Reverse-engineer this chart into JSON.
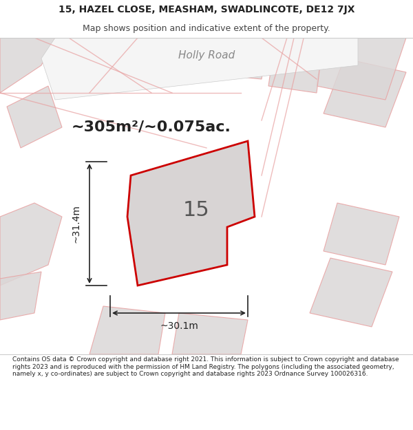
{
  "title_line1": "15, HAZEL CLOSE, MEASHAM, SWADLINCOTE, DE12 7JX",
  "title_line2": "Map shows position and indicative extent of the property.",
  "footer_text": "Contains OS data © Crown copyright and database right 2021. This information is subject to Crown copyright and database rights 2023 and is reproduced with the permission of HM Land Registry. The polygons (including the associated geometry, namely x, y co-ordinates) are subject to Crown copyright and database rights 2023 Ordnance Survey 100026316.",
  "area_label": "~305m²/~0.075ac.",
  "property_number": "15",
  "road_label": "Holly Road",
  "dim_width": "~30.1m",
  "dim_height": "~31.4m",
  "bg_color": "#f0eeee",
  "map_bg": "#e8e4e4",
  "plot_fill": "#d0cccc",
  "plot_outline": "#cc0000",
  "road_color": "#ffffff",
  "text_color": "#333333",
  "header_bg": "#ffffff",
  "footer_bg": "#ffffff"
}
